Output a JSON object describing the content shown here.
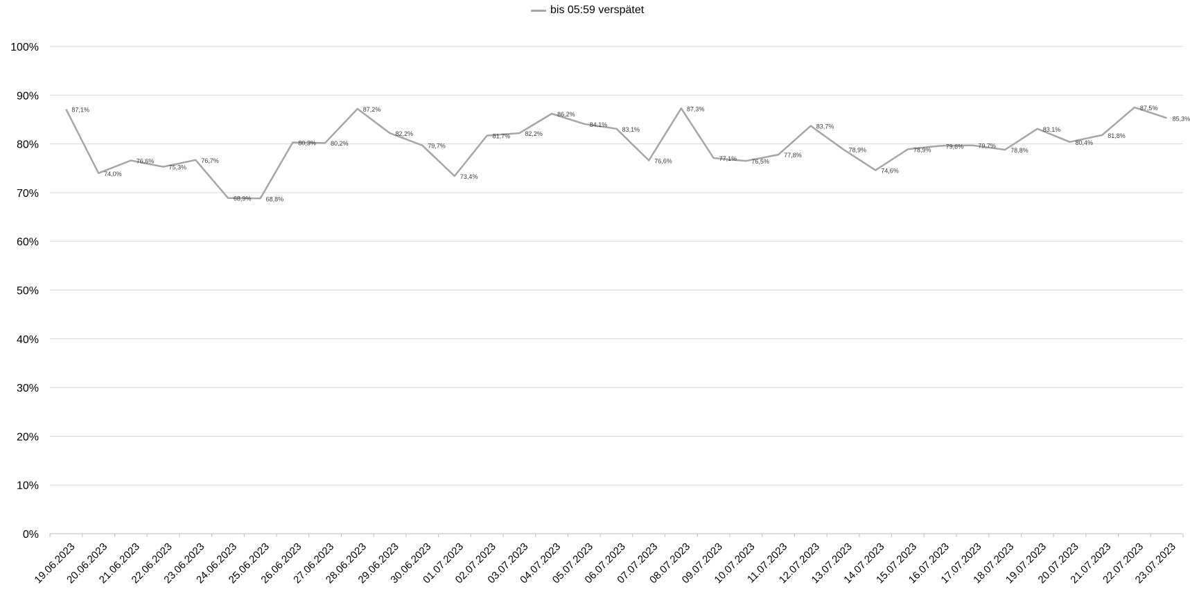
{
  "chart_data": {
    "type": "line",
    "title": "",
    "xlabel": "",
    "ylabel": "",
    "ylim": [
      0,
      100
    ],
    "yticks": [
      "0%",
      "10%",
      "20%",
      "30%",
      "40%",
      "50%",
      "60%",
      "70%",
      "80%",
      "90%",
      "100%"
    ],
    "grid": true,
    "legend_position": "top",
    "line_color": "#a6a6a6",
    "categories": [
      "19.06.2023",
      "20.06.2023",
      "21.06.2023",
      "22.06.2023",
      "23.06.2023",
      "24.06.2023",
      "25.06.2023",
      "26.06.2023",
      "27.06.2023",
      "28.06.2023",
      "29.06.2023",
      "30.06.2023",
      "01.07.2023",
      "02.07.2023",
      "03.07.2023",
      "04.07.2023",
      "05.07.2023",
      "06.07.2023",
      "07.07.2023",
      "08.07.2023",
      "09.07.2023",
      "10.07.2023",
      "11.07.2023",
      "12.07.2023",
      "13.07.2023",
      "14.07.2023",
      "15.07.2023",
      "16.07.2023",
      "17.07.2023",
      "18.07.2023",
      "19.07.2023",
      "20.07.2023",
      "21.07.2023",
      "22.07.2023",
      "23.07.2023"
    ],
    "series": [
      {
        "name": "bis 05:59 verspätet",
        "values": [
          87.1,
          74.0,
          76.6,
          75.3,
          76.7,
          68.9,
          68.8,
          80.3,
          80.2,
          87.2,
          82.2,
          79.7,
          73.4,
          81.7,
          82.2,
          86.2,
          84.1,
          83.1,
          76.6,
          87.3,
          77.1,
          76.5,
          77.8,
          83.7,
          78.9,
          74.6,
          78.9,
          79.6,
          79.7,
          78.8,
          83.1,
          80.4,
          81.8,
          87.5,
          85.3
        ],
        "labels": [
          "87,1%",
          "74,0%",
          "76,6%",
          "75,3%",
          "76,7%",
          "68,9%",
          "68,8%",
          "80,3%",
          "80,2%",
          "87,2%",
          "82,2%",
          "79,7%",
          "73,4%",
          "81,7%",
          "82,2%",
          "86,2%",
          "84,1%",
          "83,1%",
          "76,6%",
          "87,3%",
          "77,1%",
          "76,5%",
          "77,8%",
          "83,7%",
          "78,9%",
          "74,6%",
          "78,9%",
          "79,6%",
          "79,7%",
          "78,8%",
          "83,1%",
          "80,4%",
          "81,8%",
          "87,5%",
          "85,3%"
        ]
      }
    ]
  }
}
